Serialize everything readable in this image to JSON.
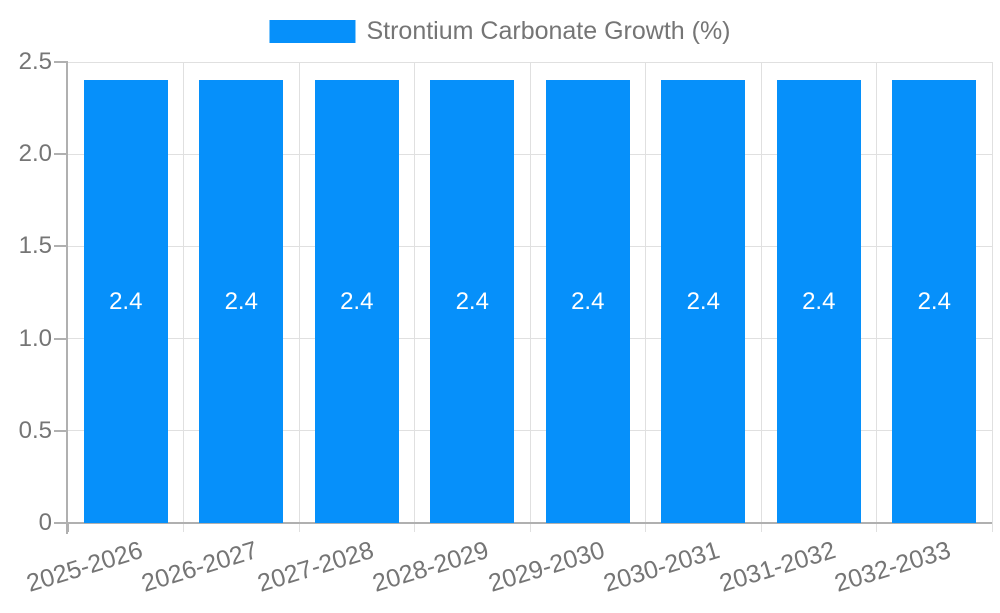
{
  "legend": {
    "label": "Strontium Carbonate Growth (%)"
  },
  "colors": {
    "bar": "#0690fa",
    "grid": "#e0e0e0",
    "axis": "#b0b0b0",
    "text": "#757575",
    "value_label": "#ffffff",
    "background": "#ffffff"
  },
  "chart_data": {
    "type": "bar",
    "title": "",
    "xlabel": "",
    "ylabel": "",
    "categories": [
      "2025-2026",
      "2026-2027",
      "2027-2028",
      "2028-2029",
      "2029-2030",
      "2030-2031",
      "2031-2032",
      "2032-2033"
    ],
    "series": [
      {
        "name": "Strontium Carbonate Growth (%)",
        "values": [
          2.4,
          2.4,
          2.4,
          2.4,
          2.4,
          2.4,
          2.4,
          2.4
        ]
      }
    ],
    "values": [
      2.4,
      2.4,
      2.4,
      2.4,
      2.4,
      2.4,
      2.4,
      2.4
    ],
    "bar_value_labels": [
      "2.4",
      "2.4",
      "2.4",
      "2.4",
      "2.4",
      "2.4",
      "2.4",
      "2.4"
    ],
    "ylim": [
      0,
      2.5
    ],
    "ytick_values": [
      0,
      0.5,
      1.0,
      1.5,
      2.0,
      2.5
    ],
    "ytick_labels": [
      "0",
      "0.5",
      "1.0",
      "1.5",
      "2.0",
      "2.5"
    ],
    "grid": true,
    "legend_position": "top-center",
    "x_tick_rotation_deg": -17
  }
}
